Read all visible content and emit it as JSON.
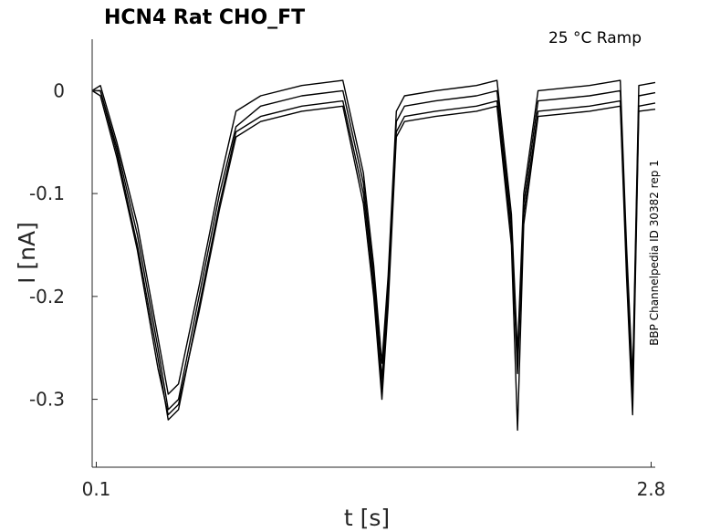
{
  "chart_data": {
    "type": "line",
    "title": "HCN4  Rat  CHO_FT",
    "condition_label": "25 °C  Ramp",
    "side_label": "BBP Channelpedia ID 30382 rep 1",
    "xlabel": "t [s]",
    "ylabel": "I [nA]",
    "x_ticks": [
      "0.1",
      "2.8"
    ],
    "y_ticks": [
      "0",
      "-0.1",
      "-0.2",
      "-0.3"
    ],
    "xlim": [
      0.08,
      2.82
    ],
    "ylim": [
      -0.366,
      0.05
    ],
    "grid": false,
    "legend": "none",
    "line_color": "#000000",
    "series": [
      {
        "x": [
          0.08,
          0.12,
          0.2,
          0.3,
          0.4,
          0.45,
          0.5,
          0.6,
          0.7,
          0.78,
          0.9,
          1.1,
          1.3,
          1.4,
          1.45,
          1.49,
          1.52,
          1.56,
          1.6,
          1.75,
          1.95,
          2.05,
          2.12,
          2.15,
          2.18,
          2.25,
          2.5,
          2.65,
          2.68,
          2.71,
          2.74,
          2.82
        ],
        "y": [
          0.0,
          0.005,
          -0.05,
          -0.13,
          -0.24,
          -0.295,
          -0.285,
          -0.19,
          -0.09,
          -0.02,
          -0.005,
          0.005,
          0.01,
          -0.08,
          -0.17,
          -0.265,
          -0.18,
          -0.02,
          -0.005,
          0.0,
          0.005,
          0.01,
          -0.12,
          -0.255,
          -0.1,
          0.0,
          0.005,
          0.01,
          -0.15,
          -0.28,
          0.005,
          0.008
        ]
      },
      {
        "x": [
          0.08,
          0.12,
          0.2,
          0.3,
          0.4,
          0.45,
          0.5,
          0.6,
          0.7,
          0.78,
          0.9,
          1.1,
          1.3,
          1.4,
          1.45,
          1.49,
          1.52,
          1.56,
          1.6,
          1.75,
          1.95,
          2.05,
          2.12,
          2.15,
          2.18,
          2.25,
          2.5,
          2.65,
          2.68,
          2.71,
          2.74,
          2.82
        ],
        "y": [
          0.0,
          0.0,
          -0.055,
          -0.14,
          -0.25,
          -0.31,
          -0.3,
          -0.2,
          -0.1,
          -0.035,
          -0.015,
          -0.005,
          0.0,
          -0.09,
          -0.18,
          -0.28,
          -0.19,
          -0.03,
          -0.015,
          -0.01,
          -0.005,
          0.0,
          -0.13,
          -0.265,
          -0.11,
          -0.01,
          -0.005,
          0.0,
          -0.16,
          -0.29,
          -0.005,
          -0.002
        ]
      },
      {
        "x": [
          0.08,
          0.12,
          0.2,
          0.3,
          0.4,
          0.45,
          0.5,
          0.6,
          0.7,
          0.78,
          0.9,
          1.1,
          1.3,
          1.4,
          1.45,
          1.49,
          1.52,
          1.56,
          1.6,
          1.75,
          1.95,
          2.05,
          2.12,
          2.15,
          2.18,
          2.25,
          2.5,
          2.65,
          2.68,
          2.71,
          2.74,
          2.82
        ],
        "y": [
          0.0,
          0.0,
          -0.06,
          -0.15,
          -0.26,
          -0.32,
          -0.31,
          -0.21,
          -0.11,
          -0.04,
          -0.025,
          -0.015,
          -0.01,
          -0.1,
          -0.19,
          -0.29,
          -0.2,
          -0.04,
          -0.025,
          -0.02,
          -0.015,
          -0.01,
          -0.14,
          -0.275,
          -0.12,
          -0.02,
          -0.015,
          -0.01,
          -0.17,
          -0.3,
          -0.015,
          -0.012
        ]
      },
      {
        "x": [
          0.08,
          0.12,
          0.2,
          0.3,
          0.4,
          0.45,
          0.5,
          0.6,
          0.7,
          0.78,
          0.9,
          1.1,
          1.3,
          1.4,
          1.45,
          1.49,
          1.52,
          1.56,
          1.6,
          1.75,
          1.95,
          2.05,
          2.12,
          2.15,
          2.18,
          2.25,
          2.5,
          2.65,
          2.68,
          2.71,
          2.74,
          2.82
        ],
        "y": [
          0.0,
          -0.005,
          -0.065,
          -0.155,
          -0.27,
          -0.315,
          -0.305,
          -0.215,
          -0.115,
          -0.045,
          -0.03,
          -0.02,
          -0.015,
          -0.11,
          -0.2,
          -0.3,
          -0.21,
          -0.045,
          -0.03,
          -0.025,
          -0.02,
          -0.015,
          -0.15,
          -0.33,
          -0.13,
          -0.025,
          -0.02,
          -0.015,
          -0.18,
          -0.315,
          -0.02,
          -0.018
        ]
      }
    ]
  }
}
